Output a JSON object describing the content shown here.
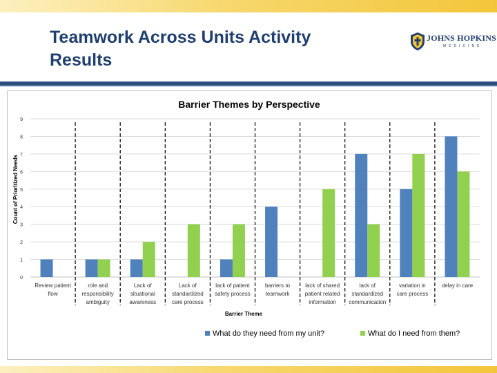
{
  "slide": {
    "title": "Teamwork Across Units Activity Results",
    "logo_text": "JOHNS HOPKINS",
    "logo_sub": "MEDICINE"
  },
  "colors": {
    "series1": "#4f81bd",
    "series2": "#92d050",
    "gridline": "#d9d9d9",
    "header_rule": "#2b4d7e",
    "band_gold": "#f3c63a"
  },
  "chart_data": {
    "type": "bar",
    "title": "Barrier Themes by Perspective",
    "xlabel": "Barrier Theme",
    "ylabel": "Count of Prioritized Needs",
    "ylim": [
      0,
      9
    ],
    "yticks": [
      "0",
      "1",
      "2",
      "3",
      "4",
      "5",
      "6",
      "7",
      "8",
      "9"
    ],
    "grid": true,
    "legend_position": "bottom",
    "categories": [
      [
        "Review  patient",
        "flow"
      ],
      [
        "role and",
        "responsibility",
        "ambiguity"
      ],
      [
        "Lack of",
        "situational",
        "awareness"
      ],
      [
        "Lack of",
        "standardized",
        "care process"
      ],
      [
        "lack of patient",
        "safety process"
      ],
      [
        "barriers to",
        "teamwork"
      ],
      [
        "lack of shared",
        "patient related",
        "information"
      ],
      [
        "lack of",
        "standardized",
        "communication"
      ],
      [
        "variation in",
        "care process"
      ],
      [
        "delay in care"
      ]
    ],
    "series": [
      {
        "name": "What do they need from my unit?",
        "values": [
          1,
          1,
          1,
          0,
          1,
          4,
          0,
          7,
          5,
          8
        ]
      },
      {
        "name": "What do I need from them?",
        "values": [
          0,
          1,
          2,
          3,
          3,
          0,
          5,
          3,
          7,
          6
        ]
      }
    ]
  }
}
